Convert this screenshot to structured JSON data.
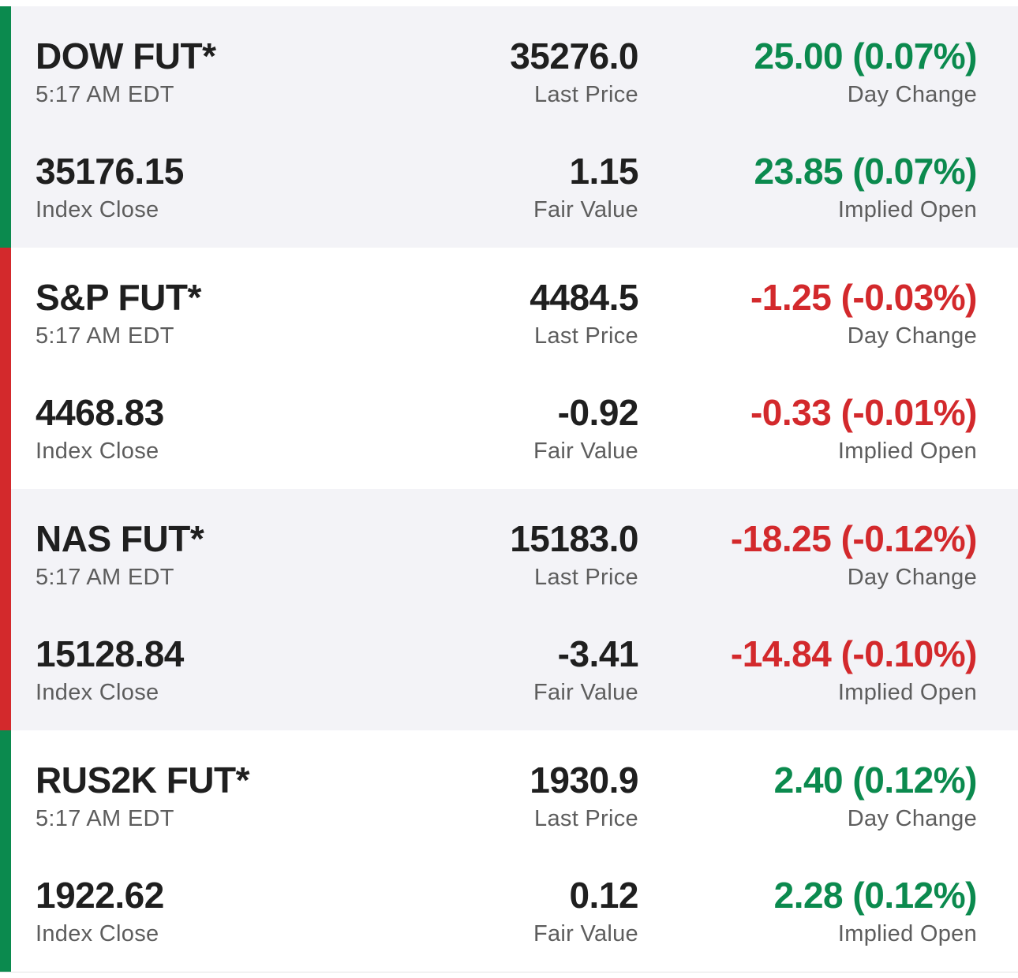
{
  "colors": {
    "up": "#0b8a4e",
    "down": "#d3292c",
    "shaded": "#f3f3f7"
  },
  "quotes": [
    {
      "symbol": "DOW FUT*",
      "time": "5:17 AM EDT",
      "last_price": "35276.0",
      "last_price_label": "Last Price",
      "day_change": "25.00 (0.07%)",
      "day_change_label": "Day Change",
      "index_close": "35176.15",
      "index_close_label": "Index Close",
      "fair_value": "1.15",
      "fair_value_label": "Fair Value",
      "implied_open": "23.85 (0.07%)",
      "implied_open_label": "Implied Open",
      "direction": "up"
    },
    {
      "symbol": "S&P FUT*",
      "time": "5:17 AM EDT",
      "last_price": "4484.5",
      "last_price_label": "Last Price",
      "day_change": "-1.25 (-0.03%)",
      "day_change_label": "Day Change",
      "index_close": "4468.83",
      "index_close_label": "Index Close",
      "fair_value": "-0.92",
      "fair_value_label": "Fair Value",
      "implied_open": "-0.33 (-0.01%)",
      "implied_open_label": "Implied Open",
      "direction": "down"
    },
    {
      "symbol": "NAS FUT*",
      "time": "5:17 AM EDT",
      "last_price": "15183.0",
      "last_price_label": "Last Price",
      "day_change": "-18.25 (-0.12%)",
      "day_change_label": "Day Change",
      "index_close": "15128.84",
      "index_close_label": "Index Close",
      "fair_value": "-3.41",
      "fair_value_label": "Fair Value",
      "implied_open": "-14.84 (-0.10%)",
      "implied_open_label": "Implied Open",
      "direction": "down"
    },
    {
      "symbol": "RUS2K FUT*",
      "time": "5:17 AM EDT",
      "last_price": "1930.9",
      "last_price_label": "Last Price",
      "day_change": "2.40 (0.12%)",
      "day_change_label": "Day Change",
      "index_close": "1922.62",
      "index_close_label": "Index Close",
      "fair_value": "0.12",
      "fair_value_label": "Fair Value",
      "implied_open": "2.28 (0.12%)",
      "implied_open_label": "Implied Open",
      "direction": "up"
    }
  ]
}
